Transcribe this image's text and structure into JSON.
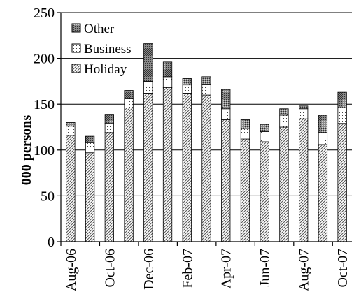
{
  "chart_data": {
    "type": "bar",
    "stacked": true,
    "categories": [
      "Aug-06",
      "Sep-06",
      "Oct-06",
      "Nov-06",
      "Dec-06",
      "Jan-07",
      "Feb-07",
      "Mar-07",
      "Apr-07",
      "May-07",
      "Jun-07",
      "Jul-07",
      "Aug-07",
      "Sep-07",
      "Oct-07"
    ],
    "x_tick_labels": [
      "Aug-06",
      "Oct-06",
      "Dec-06",
      "Feb-07",
      "Apr-07",
      "Jun-07",
      "Aug-07",
      "Oct-07"
    ],
    "series": [
      {
        "name": "Holiday",
        "values": [
          116,
          97,
          119,
          146,
          162,
          168,
          162,
          160,
          133,
          112,
          109,
          125,
          134,
          106,
          129
        ]
      },
      {
        "name": "Business",
        "values": [
          10,
          11,
          10,
          10,
          13,
          12,
          9,
          12,
          12,
          11,
          11,
          13,
          11,
          13,
          17
        ]
      },
      {
        "name": "Other",
        "values": [
          4,
          7,
          10,
          9,
          41,
          16,
          7,
          8,
          21,
          10,
          8,
          7,
          3,
          19,
          17
        ]
      }
    ],
    "title": "",
    "xlabel": "",
    "ylabel": "000 persons",
    "ylim": [
      0,
      250
    ],
    "yticks": [
      0,
      50,
      100,
      150,
      200,
      250
    ],
    "grid": true,
    "legend_position": "top-left",
    "legend_order": [
      "Other",
      "Business",
      "Holiday"
    ]
  }
}
